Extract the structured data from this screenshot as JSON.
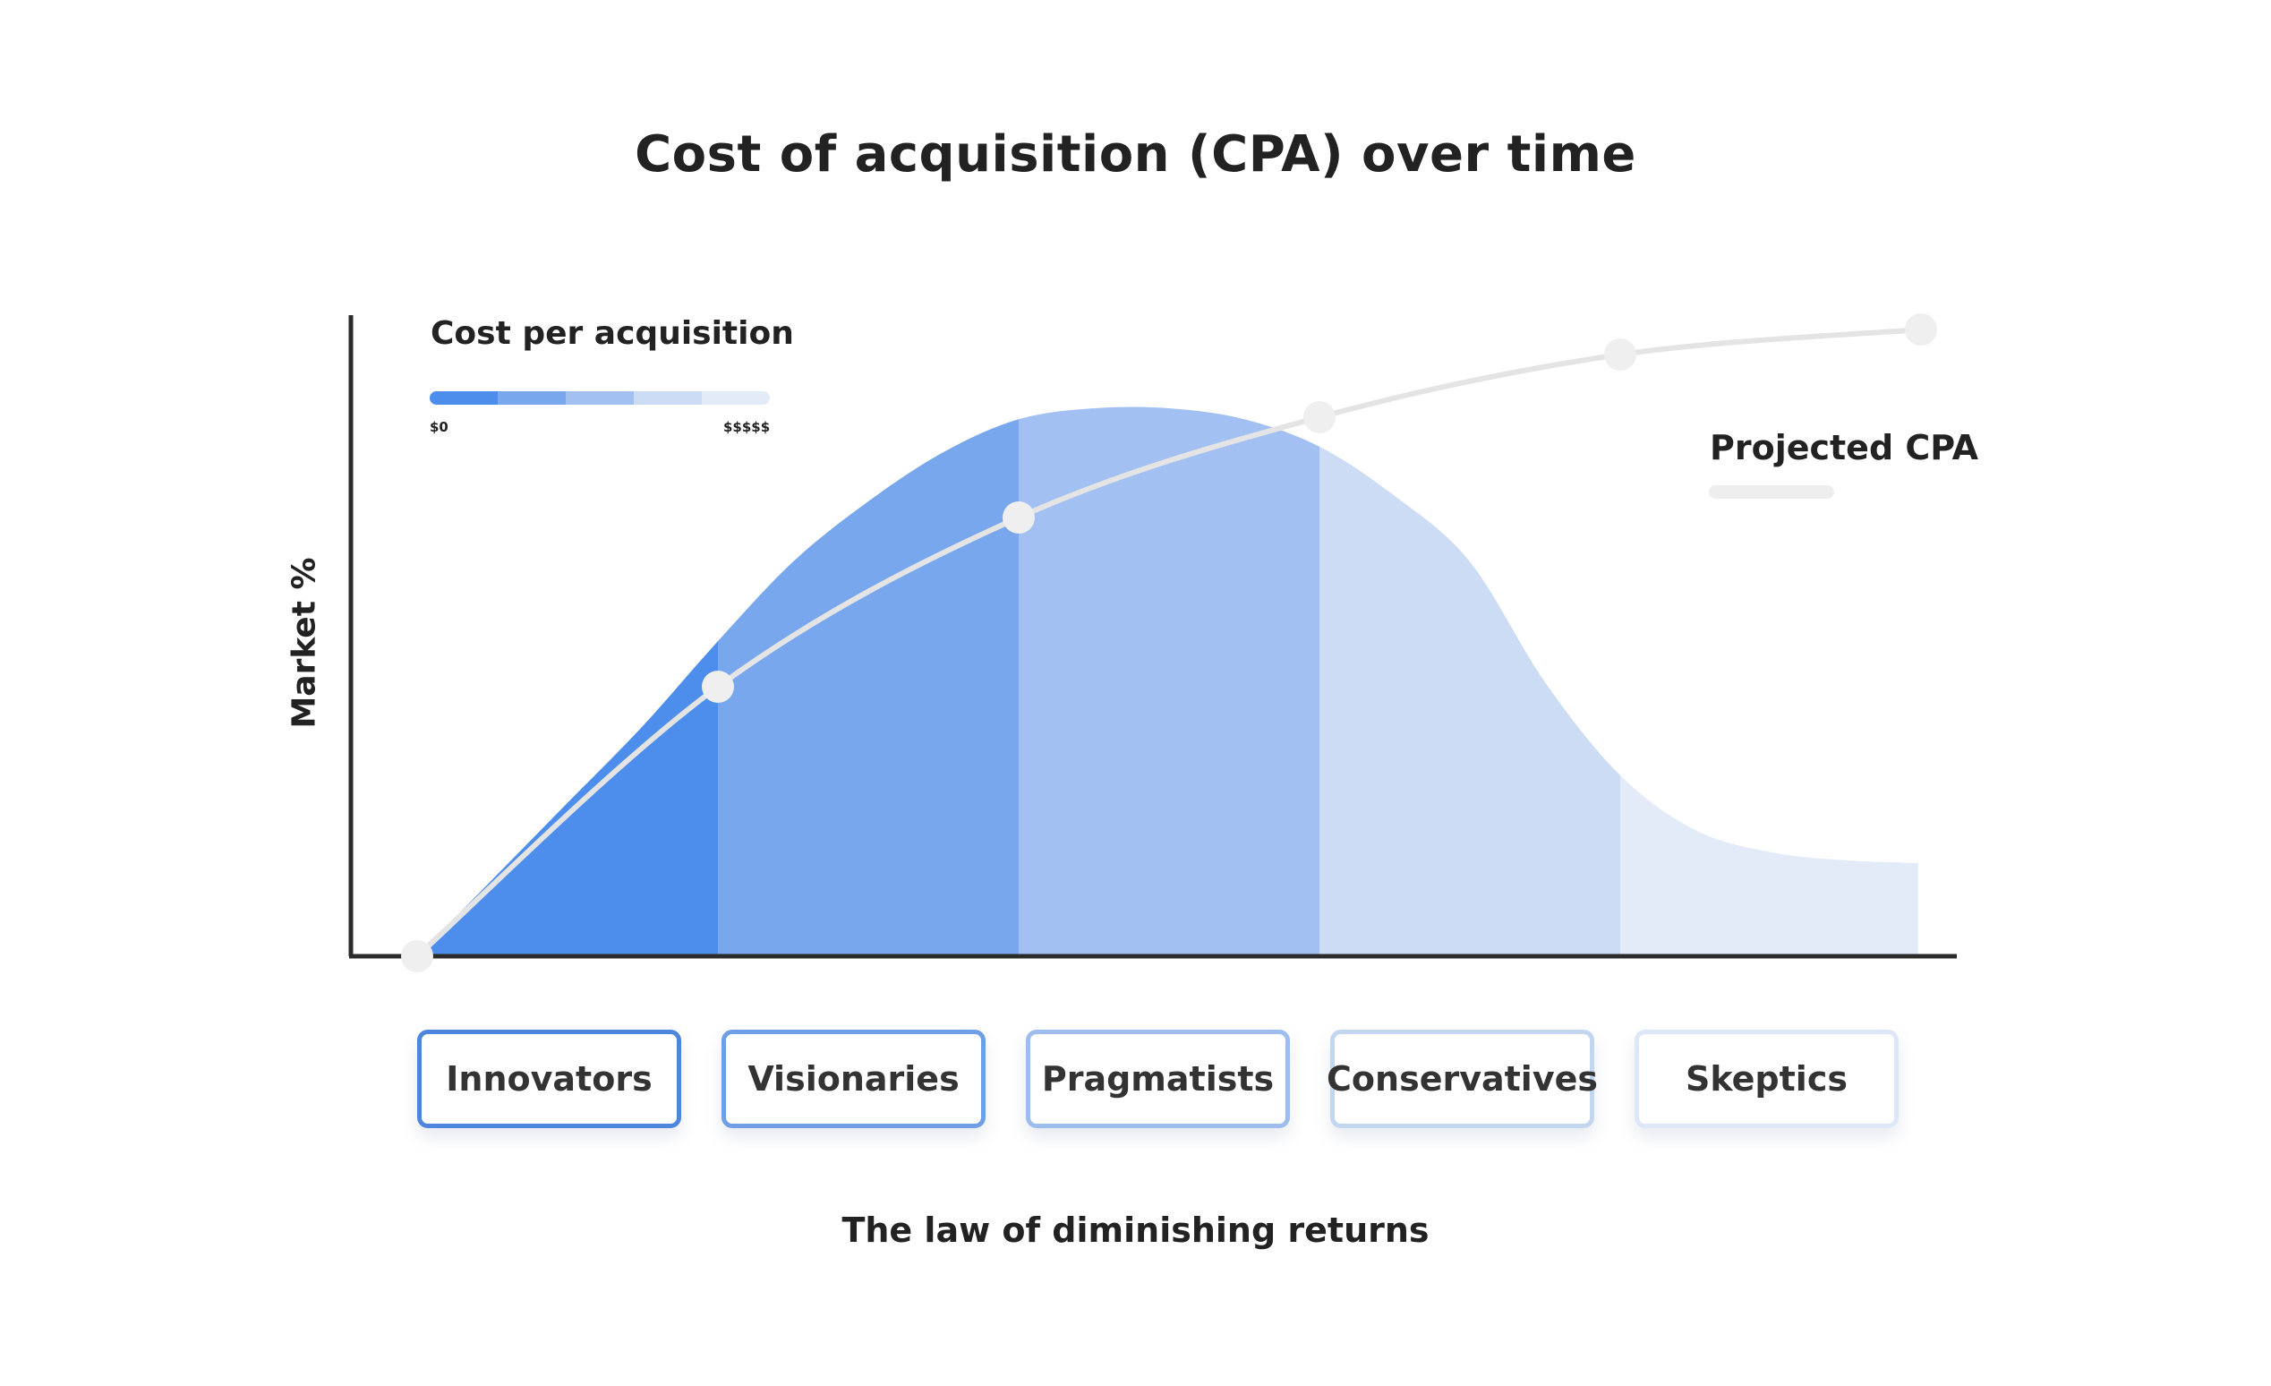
{
  "chart_data": {
    "type": "area",
    "title": "Cost of acquisition (CPA) over time",
    "ylabel": "Market %",
    "xlabel": "",
    "categories": [
      "Innovators",
      "Visionaries",
      "Pragmatists",
      "Conservatives",
      "Skeptics"
    ],
    "segment_colors": [
      "#4d8deb",
      "#78a7ee",
      "#a2c0f1",
      "#cbdcf4",
      "#e3ebf8"
    ],
    "segment_border_colors": [
      "#4d86dc",
      "#6e9fe6",
      "#9dbdee",
      "#c3d6f0",
      "#dde7f7"
    ],
    "market_curve": {
      "x": [
        0,
        0.25,
        0.5,
        0.75,
        1,
        1.25,
        1.5,
        1.75,
        2,
        2.25,
        2.5,
        2.75,
        3,
        3.25,
        3.5,
        3.75,
        4,
        4.25,
        4.5,
        4.75,
        4.99
      ],
      "y": [
        0,
        0.14,
        0.28,
        0.42,
        0.575,
        0.72,
        0.83,
        0.92,
        0.98,
        1.0,
        1.0,
        0.98,
        0.93,
        0.84,
        0.72,
        0.5,
        0.33,
        0.23,
        0.19,
        0.175,
        0.17
      ]
    },
    "cpa_series": {
      "name": "Projected CPA",
      "x": [
        0,
        1,
        2,
        3,
        4,
        5
      ],
      "y": [
        0,
        0.43,
        0.7,
        0.86,
        0.96,
        1.0
      ]
    },
    "legend": {
      "title": "Cost per acquisition",
      "min_label": "$0",
      "max_label": "$$$$$",
      "scale_colors": [
        "#4d8deb",
        "#78a7ee",
        "#a2c0f1",
        "#cbdcf4",
        "#e3ebf8"
      ],
      "line_color": "#e4e4e4",
      "marker_color": "#efefef"
    },
    "axis_color": "#2b2b2b",
    "footer": "The law of diminishing returns"
  }
}
